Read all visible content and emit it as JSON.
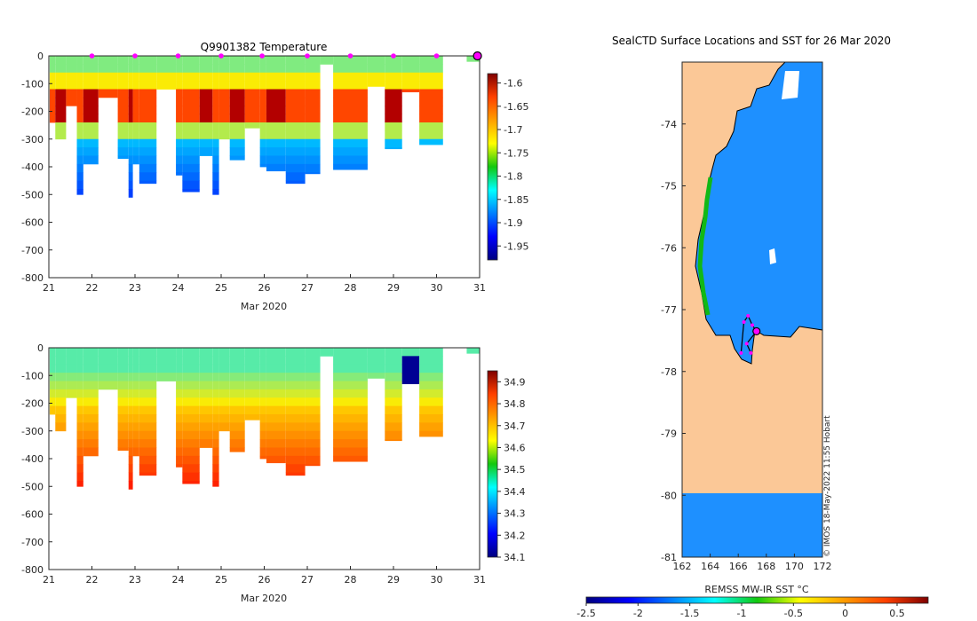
{
  "colors": {
    "land": "#fbc897",
    "ocean": "#1e90ff",
    "marker": "#ff00ff",
    "frame": "#262626"
  },
  "chart_data": [
    {
      "type": "heatmap",
      "title": "Q9901382  Temperature",
      "xlabel": "Mar 2020",
      "ylabel": "",
      "xlim": [
        21,
        31
      ],
      "ylim": [
        -800,
        0
      ],
      "xticks": [
        "21",
        "22",
        "23",
        "24",
        "25",
        "26",
        "27",
        "28",
        "29",
        "30",
        "31"
      ],
      "yticks": [
        "0",
        "-100",
        "-200",
        "-300",
        "-400",
        "-500",
        "-600",
        "-700",
        "-800"
      ],
      "colorbar": {
        "min": -1.98,
        "max": -1.58,
        "ticks": [
          "-1.6",
          "-1.65",
          "-1.7",
          "-1.75",
          "-1.8",
          "-1.85",
          "-1.9",
          "-1.95"
        ],
        "colormap": "jet"
      },
      "profile_dates": [
        22.0,
        23.0,
        24.0,
        25.0,
        25.95,
        27.0,
        28.0,
        29.0,
        30.0
      ],
      "profile_depths": [
        300,
        390,
        500,
        510,
        450,
        490,
        500,
        360,
        400,
        420,
        460,
        420,
        410,
        330,
        320
      ],
      "value_range": [
        -1.95,
        -1.6
      ]
    },
    {
      "type": "heatmap",
      "title": "",
      "xlabel": "Mar 2020",
      "ylabel": "",
      "xlim": [
        21,
        31
      ],
      "ylim": [
        -800,
        0
      ],
      "xticks": [
        "21",
        "22",
        "23",
        "24",
        "25",
        "26",
        "27",
        "28",
        "29",
        "30",
        "31"
      ],
      "yticks": [
        "0",
        "-100",
        "-200",
        "-300",
        "-400",
        "-500",
        "-600",
        "-700",
        "-800"
      ],
      "colorbar": {
        "min": 34.1,
        "max": 34.95,
        "ticks": [
          "34.9",
          "34.8",
          "34.7",
          "34.6",
          "34.5",
          "34.4",
          "34.3",
          "34.2",
          "34.1"
        ],
        "colormap": "jet"
      },
      "value_range": [
        34.1,
        34.9
      ]
    },
    {
      "type": "heatmap",
      "title": "SealCTD Surface Locations and SST for 26 Mar 2020",
      "xlabel": "",
      "ylabel": "",
      "xlim": [
        162,
        172
      ],
      "ylim": [
        -81,
        -73
      ],
      "xticks": [
        "162",
        "164",
        "166",
        "168",
        "170",
        "172"
      ],
      "yticks": [
        "-74",
        "-75",
        "-76",
        "-77",
        "-78",
        "-79",
        "-80",
        "-81"
      ],
      "colorbar": {
        "min": -2.5,
        "max": 0.8,
        "ticks": [
          "-2.5",
          "-2",
          "-1.5",
          "-1",
          "-0.5",
          "0",
          "0.5"
        ],
        "label": "REMSS MW-IR SST °C",
        "colormap": "jet"
      },
      "credit": "© IMOS 18-May-2022 11:55 Hobart",
      "track_points": [
        [
          166.2,
          -77.7
        ],
        [
          166.4,
          -77.2
        ],
        [
          166.7,
          -77.1
        ],
        [
          167.0,
          -77.25
        ],
        [
          167.3,
          -77.35
        ],
        [
          166.6,
          -77.55
        ],
        [
          166.9,
          -77.7
        ]
      ],
      "last_position": [
        167.3,
        -77.35
      ]
    }
  ]
}
